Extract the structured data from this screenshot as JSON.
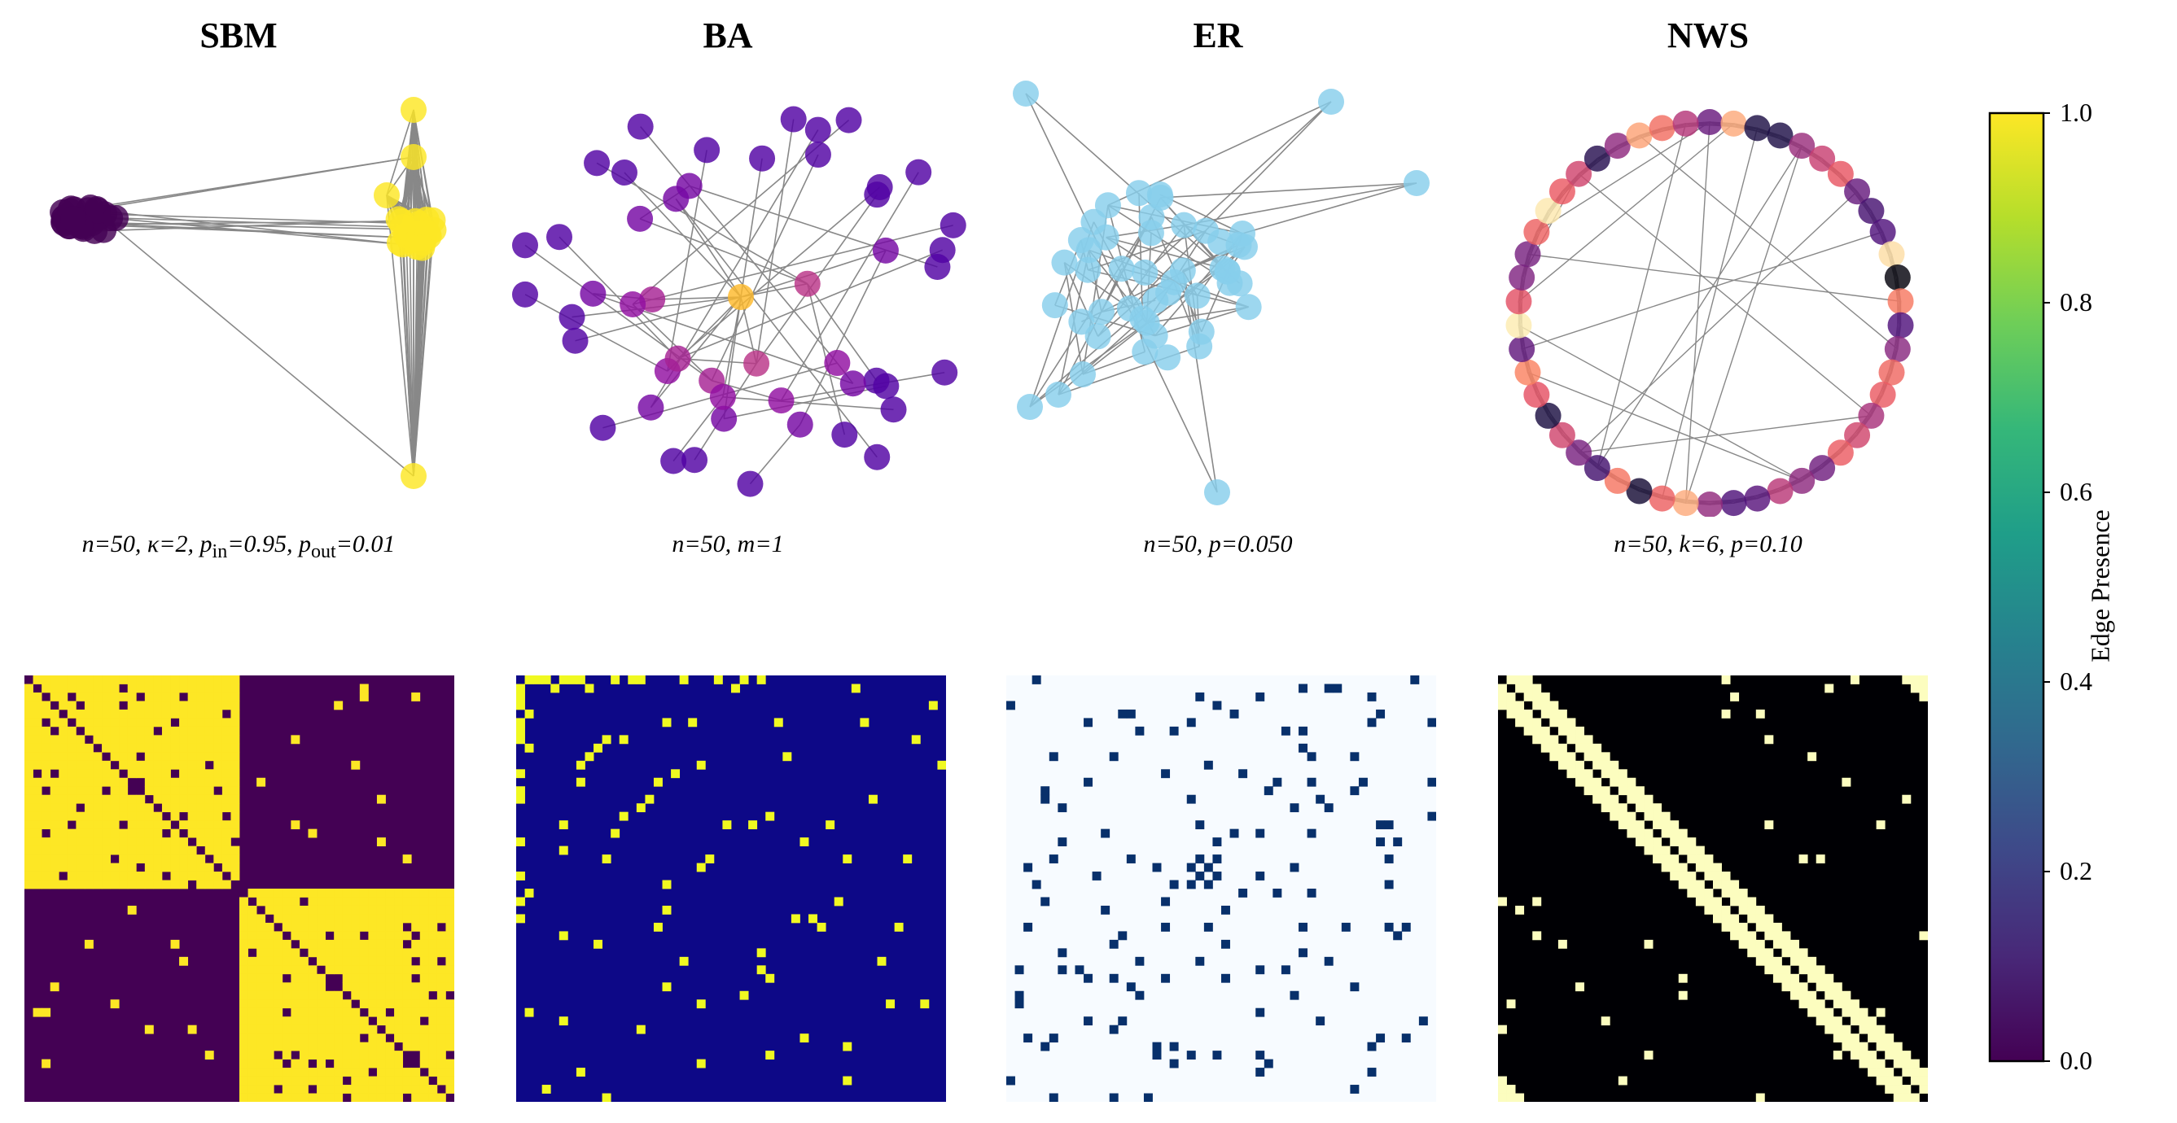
{
  "chart_data": [
    {
      "type": "network",
      "model": "SBM",
      "title": "SBM",
      "caption": {
        "n": "n=50",
        "kappa": "κ=2",
        "p_in_label": "p",
        "p_in_sub": "in",
        "p_in_val": "=0.95",
        "p_out_label": "p",
        "p_out_sub": "out",
        "p_out_val": "=0.01"
      },
      "params": {
        "n": 50,
        "kappa": 2,
        "p_in": 0.95,
        "p_out": 0.01
      },
      "node_colors": [
        "#440154",
        "#fde725"
      ]
    },
    {
      "type": "network",
      "model": "BA",
      "title": "BA",
      "caption": {
        "text": "n=50, m=1"
      },
      "params": {
        "n": 50,
        "m": 1
      },
      "node_colormap": "plasma"
    },
    {
      "type": "network",
      "model": "ER",
      "title": "ER",
      "caption": {
        "text": "n=50, p=0.050"
      },
      "params": {
        "n": 50,
        "p": 0.05
      },
      "node_color": "#87ceeb"
    },
    {
      "type": "network",
      "model": "NWS",
      "title": "NWS",
      "caption": {
        "text": "n=50, k=6, p=0.10"
      },
      "params": {
        "n": 50,
        "k": 6,
        "p": 0.1
      },
      "node_colormap": "magma"
    },
    {
      "type": "heatmap",
      "model": "SBM",
      "size": 50,
      "colors": {
        "off": "#440154",
        "on": "#fde725"
      }
    },
    {
      "type": "heatmap",
      "model": "BA",
      "size": 50,
      "colors": {
        "off": "#0d0887",
        "on": "#f0f921"
      }
    },
    {
      "type": "heatmap",
      "model": "ER",
      "size": 50,
      "colors": {
        "off": "#f7fbff",
        "on": "#08306b"
      }
    },
    {
      "type": "heatmap",
      "model": "NWS",
      "size": 50,
      "colors": {
        "off": "#000004",
        "on": "#fcfdbf"
      }
    },
    {
      "type": "colorbar",
      "label": "Edge Presence",
      "range": [
        0,
        1
      ],
      "ticks": [
        "0.0",
        "0.2",
        "0.4",
        "0.6",
        "0.8",
        "1.0"
      ],
      "colormap": "viridis"
    }
  ]
}
